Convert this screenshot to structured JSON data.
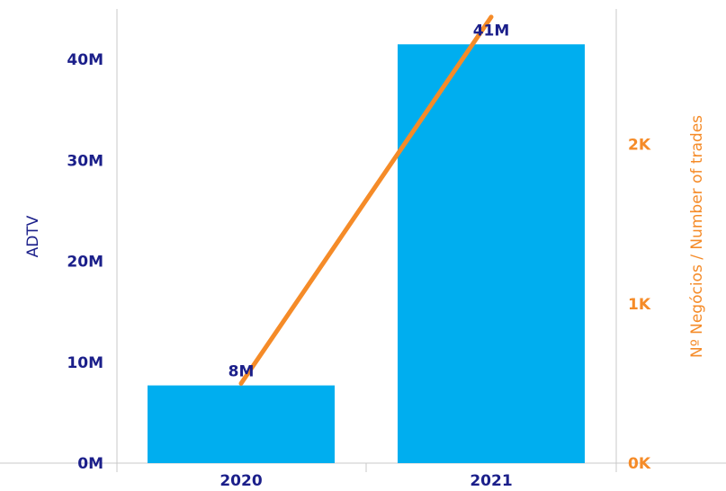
{
  "chart_data": {
    "type": "bar",
    "categories": [
      "2020",
      "2021"
    ],
    "series": [
      {
        "name": "ADTV",
        "type": "bar",
        "axis": "left",
        "values": [
          7.7,
          41.5
        ],
        "labels": [
          "8M",
          "41M"
        ]
      },
      {
        "name": "Nº Negócios / Number of trades",
        "type": "line",
        "axis": "right",
        "values": [
          0.5,
          2.8
        ]
      }
    ],
    "ylabel": "ADTV",
    "y2label": "Nº Negócios / Number of trades",
    "ylim": [
      0,
      45
    ],
    "yticks": [
      0,
      10,
      20,
      30,
      40
    ],
    "yticklabels": [
      "0M",
      "10M",
      "20M",
      "30M",
      "40M"
    ],
    "y2lim": [
      0,
      2.85
    ],
    "y2ticks": [
      0,
      1,
      2
    ],
    "y2ticklabels": [
      "0K",
      "1K",
      "2K"
    ],
    "grid": false,
    "legend": "none"
  },
  "colors": {
    "bar": "#00AEEF",
    "line": "#F58B28",
    "left_axis_text": "#1B1F8A",
    "right_axis_text": "#F58B28",
    "axis_line": "#C8C8C8"
  }
}
